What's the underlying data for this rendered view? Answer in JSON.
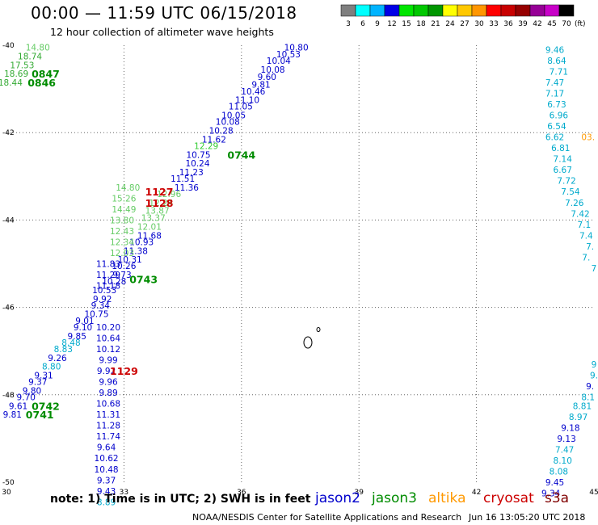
{
  "header": {
    "title": "00:00 — 11:59 UTC 06/15/2018",
    "subtitle": "12 hour collection of altimeter wave heights"
  },
  "colorbar": {
    "labels": [
      "3",
      "6",
      "9",
      "12",
      "15",
      "18",
      "21",
      "24",
      "27",
      "30",
      "33",
      "36",
      "39",
      "42",
      "45",
      "70"
    ],
    "unit": "(ft)",
    "colors": [
      "#7f7f7f",
      "#00ffff",
      "#00b4ff",
      "#0000e6",
      "#00e600",
      "#00c800",
      "#009600",
      "#ffff00",
      "#ffc800",
      "#ff9600",
      "#ff0000",
      "#c80000",
      "#960000",
      "#960096",
      "#c800c8",
      "#000000"
    ]
  },
  "footer": {
    "note": "note: 1) Time is in UTC; 2) SWH is in feet",
    "satellites": [
      {
        "name": "jason2",
        "color": "#0000cc"
      },
      {
        "name": "jason3",
        "color": "#008c00"
      },
      {
        "name": "altika",
        "color": "#ff9900"
      },
      {
        "name": "cryosat",
        "color": "#cc0000"
      },
      {
        "name": "s3a",
        "color": "#800000"
      }
    ],
    "credit": "NOAA/NESDIS Center for Satellite Applications and Research",
    "timestamp": "Jun 16 13:05:20 UTC 2018"
  },
  "chart_data": {
    "type": "scatter",
    "xlim": [
      30,
      45
    ],
    "ylim": [
      -50,
      -40
    ],
    "x_ticks": [
      30,
      33,
      36,
      39,
      42,
      45
    ],
    "y_ticks": [
      -40,
      -42,
      -44,
      -46,
      -48,
      -50
    ],
    "grid": "dotted",
    "points": [
      {
        "x": 37.4,
        "y": -40.05,
        "label": "10.80",
        "c": "#0000cc"
      },
      {
        "x": 37.2,
        "y": -40.2,
        "label": "10.53",
        "c": "#0000cc"
      },
      {
        "x": 36.95,
        "y": -40.35,
        "label": "10.04",
        "c": "#0000cc"
      },
      {
        "x": 36.8,
        "y": -40.55,
        "label": "10.08",
        "c": "#0000cc"
      },
      {
        "x": 36.65,
        "y": -40.72,
        "label": "9.60",
        "c": "#0000cc"
      },
      {
        "x": 36.5,
        "y": -40.9,
        "label": "9.81",
        "c": "#0000cc"
      },
      {
        "x": 36.3,
        "y": -41.05,
        "label": "10.46",
        "c": "#0000cc"
      },
      {
        "x": 36.15,
        "y": -41.25,
        "label": "11.10",
        "c": "#0000cc"
      },
      {
        "x": 35.98,
        "y": -41.4,
        "label": "11.05",
        "c": "#0000cc"
      },
      {
        "x": 35.8,
        "y": -41.6,
        "label": "10.05",
        "c": "#0000cc"
      },
      {
        "x": 35.65,
        "y": -41.75,
        "label": "10.08",
        "c": "#0000cc"
      },
      {
        "x": 35.48,
        "y": -41.95,
        "label": "10.28",
        "c": "#0000cc"
      },
      {
        "x": 35.3,
        "y": -42.15,
        "label": "11.62",
        "c": "#0000cc"
      },
      {
        "x": 35.1,
        "y": -42.3,
        "label": "12.29",
        "c": "#33cc33"
      },
      {
        "x": 34.9,
        "y": -42.5,
        "label": "10.75",
        "c": "#0000cc"
      },
      {
        "x": 34.88,
        "y": -42.7,
        "label": "10.24",
        "c": "#0000cc"
      },
      {
        "x": 34.72,
        "y": -42.9,
        "label": "11.23",
        "c": "#0000cc"
      },
      {
        "x": 34.5,
        "y": -43.05,
        "label": "11.51",
        "c": "#0000cc"
      },
      {
        "x": 34.6,
        "y": -43.25,
        "label": "11.36",
        "c": "#0000cc"
      },
      {
        "x": 34.15,
        "y": -43.4,
        "label": "12.96",
        "c": "#66cc66"
      },
      {
        "x": 33.95,
        "y": -43.6,
        "label": "12.24",
        "c": "#66cc66"
      },
      {
        "x": 33.85,
        "y": -43.78,
        "label": "13.87",
        "c": "#66cc66"
      },
      {
        "x": 33.75,
        "y": -43.95,
        "label": "13.37",
        "c": "#66cc66"
      },
      {
        "x": 33.65,
        "y": -44.15,
        "label": "12.01",
        "c": "#66cc66"
      },
      {
        "x": 33.65,
        "y": -44.35,
        "label": "11.68",
        "c": "#0000cc"
      },
      {
        "x": 33.45,
        "y": -44.5,
        "label": "10.93",
        "c": "#0000cc"
      },
      {
        "x": 33.3,
        "y": -44.7,
        "label": "11.38",
        "c": "#0000cc"
      },
      {
        "x": 33.15,
        "y": -44.9,
        "label": "10.31",
        "c": "#0000cc"
      },
      {
        "x": 33.0,
        "y": -45.05,
        "label": "10.26",
        "c": "#0000cc"
      },
      {
        "x": 32.95,
        "y": -45.25,
        "label": "9.73",
        "c": "#0000cc"
      },
      {
        "x": 32.75,
        "y": -45.4,
        "label": "10.28",
        "c": "#0000cc"
      },
      {
        "x": 32.5,
        "y": -45.6,
        "label": "10.53",
        "c": "#0000cc"
      },
      {
        "x": 32.45,
        "y": -45.8,
        "label": "9.92",
        "c": "#0000cc"
      },
      {
        "x": 32.4,
        "y": -45.95,
        "label": "9.34",
        "c": "#0000cc"
      },
      {
        "x": 32.3,
        "y": -46.15,
        "label": "10.75",
        "c": "#0000cc"
      },
      {
        "x": 32.0,
        "y": -46.3,
        "label": "9.01",
        "c": "#0000cc"
      },
      {
        "x": 31.95,
        "y": -46.45,
        "label": "9.10",
        "c": "#0000cc"
      },
      {
        "x": 32.6,
        "y": -46.45,
        "label": "10.20",
        "c": "#0000cc"
      },
      {
        "x": 31.8,
        "y": -46.65,
        "label": "9.85",
        "c": "#0000cc"
      },
      {
        "x": 32.6,
        "y": -46.7,
        "label": "10.64",
        "c": "#0000cc"
      },
      {
        "x": 31.65,
        "y": -46.8,
        "label": "8.48",
        "c": "#00aacc"
      },
      {
        "x": 31.45,
        "y": -46.95,
        "label": "8.83",
        "c": "#00aacc"
      },
      {
        "x": 32.6,
        "y": -46.95,
        "label": "10.12",
        "c": "#0000cc"
      },
      {
        "x": 31.3,
        "y": -47.15,
        "label": "9.26",
        "c": "#0000cc"
      },
      {
        "x": 32.6,
        "y": -47.2,
        "label": "9.99",
        "c": "#0000cc"
      },
      {
        "x": 31.15,
        "y": -47.35,
        "label": "8.80",
        "c": "#00aacc"
      },
      {
        "x": 32.55,
        "y": -47.45,
        "label": "9.92",
        "c": "#0000cc"
      },
      {
        "x": 30.95,
        "y": -47.55,
        "label": "9.31",
        "c": "#0000cc"
      },
      {
        "x": 30.8,
        "y": -47.7,
        "label": "9.37",
        "c": "#0000cc"
      },
      {
        "x": 32.6,
        "y": -47.7,
        "label": "9.96",
        "c": "#0000cc"
      },
      {
        "x": 30.65,
        "y": -47.9,
        "label": "9.80",
        "c": "#0000cc"
      },
      {
        "x": 32.6,
        "y": -47.95,
        "label": "9.89",
        "c": "#0000cc"
      },
      {
        "x": 30.5,
        "y": -48.05,
        "label": "9.70",
        "c": "#0000cc"
      },
      {
        "x": 30.3,
        "y": -48.25,
        "label": "9.61",
        "c": "#0000cc"
      },
      {
        "x": 32.6,
        "y": -48.2,
        "label": "10.68",
        "c": "#0000cc"
      },
      {
        "x": 30.15,
        "y": -48.45,
        "label": "9.81",
        "c": "#0000cc"
      },
      {
        "x": 32.6,
        "y": -48.45,
        "label": "11.31",
        "c": "#0000cc"
      },
      {
        "x": 32.6,
        "y": -48.7,
        "label": "11.28",
        "c": "#0000cc"
      },
      {
        "x": 32.6,
        "y": -48.95,
        "label": "11.74",
        "c": "#0000cc"
      },
      {
        "x": 32.55,
        "y": -49.2,
        "label": "9.64",
        "c": "#0000cc"
      },
      {
        "x": 32.55,
        "y": -49.45,
        "label": "10.62",
        "c": "#0000cc"
      },
      {
        "x": 32.55,
        "y": -49.7,
        "label": "10.48",
        "c": "#0000cc"
      },
      {
        "x": 32.55,
        "y": -49.95,
        "label": "9.37",
        "c": "#0000cc"
      },
      {
        "x": 32.55,
        "y": -50.2,
        "label": "9.43",
        "c": "#0000cc"
      },
      {
        "x": 32.55,
        "y": -50.45,
        "label": "8.89",
        "c": "#00aacc"
      },
      {
        "x": 33.1,
        "y": -43.25,
        "label": "14.80",
        "c": "#66cc66"
      },
      {
        "x": 33.0,
        "y": -43.5,
        "label": "15.26",
        "c": "#66cc66"
      },
      {
        "x": 33.0,
        "y": -43.75,
        "label": "14.49",
        "c": "#66cc66"
      },
      {
        "x": 32.95,
        "y": -44.0,
        "label": "13.80",
        "c": "#66cc66"
      },
      {
        "x": 32.95,
        "y": -44.25,
        "label": "12.43",
        "c": "#66cc66"
      },
      {
        "x": 32.95,
        "y": -44.5,
        "label": "12.34",
        "c": "#66cc66"
      },
      {
        "x": 32.95,
        "y": -44.75,
        "label": "12.03",
        "c": "#66cc66"
      },
      {
        "x": 32.6,
        "y": -45.0,
        "label": "11.83",
        "c": "#0000cc"
      },
      {
        "x": 32.6,
        "y": -45.25,
        "label": "11.29",
        "c": "#0000cc"
      },
      {
        "x": 32.6,
        "y": -45.5,
        "label": "11.18",
        "c": "#0000cc"
      },
      {
        "x": 30.8,
        "y": -40.05,
        "label": "14.80",
        "c": "#66cc66"
      },
      {
        "x": 30.6,
        "y": -40.25,
        "label": "18.74",
        "c": "#33aa33"
      },
      {
        "x": 30.4,
        "y": -40.45,
        "label": "17.53",
        "c": "#33aa33"
      },
      {
        "x": 30.25,
        "y": -40.65,
        "label": "18.69",
        "c": "#33aa33"
      },
      {
        "x": 30.1,
        "y": -40.85,
        "label": "18.44",
        "c": "#33aa33"
      },
      {
        "x": 44.0,
        "y": -40.1,
        "label": "9.46",
        "c": "#00aacc"
      },
      {
        "x": 44.05,
        "y": -40.35,
        "label": "8.64",
        "c": "#00aacc"
      },
      {
        "x": 44.1,
        "y": -40.6,
        "label": "7.71",
        "c": "#00aacc"
      },
      {
        "x": 44.0,
        "y": -40.85,
        "label": "7.47",
        "c": "#00aacc"
      },
      {
        "x": 44.0,
        "y": -41.1,
        "label": "7.17",
        "c": "#00aacc"
      },
      {
        "x": 44.05,
        "y": -41.35,
        "label": "6.73",
        "c": "#00aacc"
      },
      {
        "x": 44.1,
        "y": -41.6,
        "label": "6.96",
        "c": "#00aacc"
      },
      {
        "x": 44.05,
        "y": -41.85,
        "label": "6.54",
        "c": "#00aacc"
      },
      {
        "x": 44.0,
        "y": -42.1,
        "label": "6.62",
        "c": "#00aacc"
      },
      {
        "x": 44.15,
        "y": -42.35,
        "label": "6.81",
        "c": "#00aacc"
      },
      {
        "x": 44.2,
        "y": -42.6,
        "label": "7.14",
        "c": "#00aacc"
      },
      {
        "x": 44.2,
        "y": -42.85,
        "label": "6.67",
        "c": "#00aacc"
      },
      {
        "x": 44.3,
        "y": -43.1,
        "label": "7.72",
        "c": "#00aacc"
      },
      {
        "x": 44.4,
        "y": -43.35,
        "label": "7.54",
        "c": "#00aacc"
      },
      {
        "x": 44.5,
        "y": -43.6,
        "label": "7.26",
        "c": "#00aacc"
      },
      {
        "x": 44.65,
        "y": -43.85,
        "label": "7.42",
        "c": "#00aacc"
      },
      {
        "x": 44.75,
        "y": -44.1,
        "label": "7.1",
        "c": "#00aacc"
      },
      {
        "x": 44.8,
        "y": -44.35,
        "label": "7.4",
        "c": "#00aacc"
      },
      {
        "x": 44.9,
        "y": -44.6,
        "label": "7.",
        "c": "#00aacc"
      },
      {
        "x": 44.7,
        "y": -48.25,
        "label": "8.81",
        "c": "#00aacc"
      },
      {
        "x": 44.6,
        "y": -48.5,
        "label": "8.97",
        "c": "#00aacc"
      },
      {
        "x": 44.4,
        "y": -48.75,
        "label": "9.18",
        "c": "#0000cc"
      },
      {
        "x": 44.3,
        "y": -49.0,
        "label": "9.13",
        "c": "#0000cc"
      },
      {
        "x": 44.25,
        "y": -49.25,
        "label": "7.47",
        "c": "#00aacc"
      },
      {
        "x": 44.2,
        "y": -49.5,
        "label": "8.10",
        "c": "#00aacc"
      },
      {
        "x": 44.1,
        "y": -49.75,
        "label": "8.08",
        "c": "#00aacc"
      },
      {
        "x": 44.0,
        "y": -50.0,
        "label": "9.45",
        "c": "#0000cc"
      },
      {
        "x": 43.9,
        "y": -50.25,
        "label": "9.34",
        "c": "#0000cc"
      },
      {
        "x": 45.0,
        "y": -47.3,
        "label": "9",
        "c": "#00aacc"
      },
      {
        "x": 45.0,
        "y": -47.55,
        "label": "9.",
        "c": "#00aacc"
      },
      {
        "x": 44.9,
        "y": -47.8,
        "label": "9.",
        "c": "#0000cc"
      },
      {
        "x": 44.85,
        "y": -48.05,
        "label": "8.1",
        "c": "#00aacc"
      },
      {
        "x": 44.8,
        "y": -44.85,
        "label": "7.",
        "c": "#00aacc"
      },
      {
        "x": 45.0,
        "y": -45.1,
        "label": "7",
        "c": "#00aacc"
      },
      {
        "x": 44.85,
        "y": -42.1,
        "label": "03.",
        "c": "#ff9900"
      }
    ],
    "times": [
      {
        "x": 31.0,
        "y": -40.65,
        "label": "0847",
        "c": "#008c00"
      },
      {
        "x": 30.9,
        "y": -40.85,
        "label": "0846",
        "c": "#008c00"
      },
      {
        "x": 36.0,
        "y": -42.5,
        "label": "0744",
        "c": "#008c00"
      },
      {
        "x": 33.9,
        "y": -43.35,
        "label": "1127",
        "c": "#cc0000"
      },
      {
        "x": 33.9,
        "y": -43.6,
        "label": "1128",
        "c": "#cc0000"
      },
      {
        "x": 33.5,
        "y": -45.35,
        "label": "0743",
        "c": "#008c00"
      },
      {
        "x": 33.0,
        "y": -47.45,
        "label": "1129",
        "c": "#cc0000"
      },
      {
        "x": 31.0,
        "y": -48.25,
        "label": "0742",
        "c": "#008c00"
      },
      {
        "x": 30.85,
        "y": -48.45,
        "label": "0741",
        "c": "#008c00"
      }
    ]
  }
}
